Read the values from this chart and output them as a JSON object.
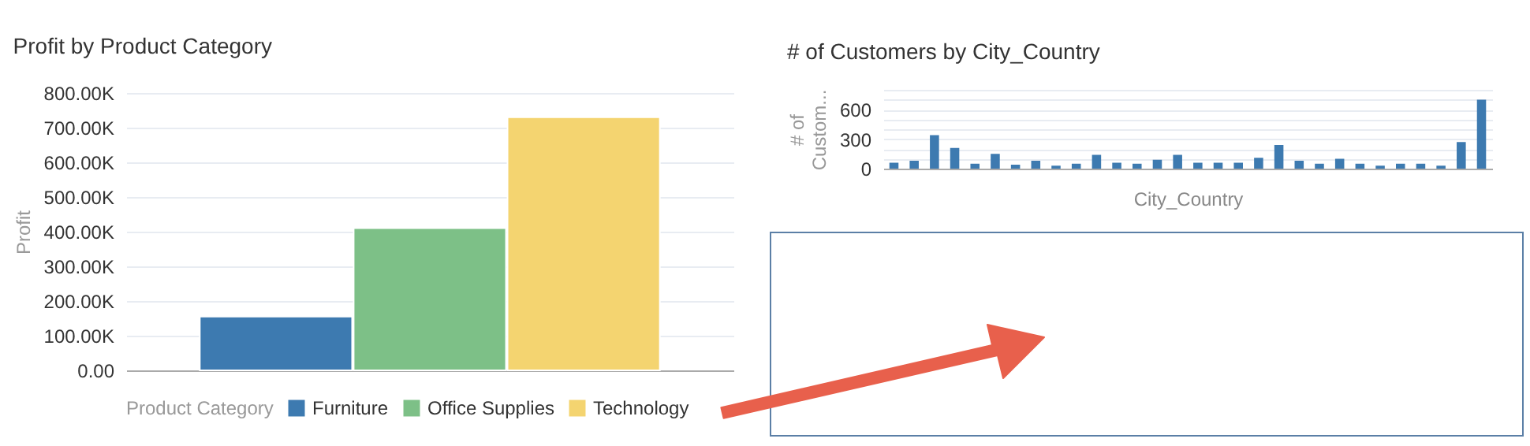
{
  "chart_data": [
    {
      "type": "bar",
      "title": "Profit by Product Category",
      "ylabel": "Profit",
      "legend_title": "Product Category",
      "categories": [
        null
      ],
      "series": [
        {
          "name": "Furniture",
          "color": "#3d7ab0",
          "values": [
            155000
          ]
        },
        {
          "name": "Office Supplies",
          "color": "#7dc087",
          "values": [
            410000
          ]
        },
        {
          "name": "Technology",
          "color": "#f4d470",
          "values": [
            730000
          ]
        }
      ],
      "ylim": [
        0,
        800000
      ],
      "yticks": [
        {
          "value": 0,
          "label": "0.00"
        },
        {
          "value": 100000,
          "label": "100.00K"
        },
        {
          "value": 200000,
          "label": "200.00K"
        },
        {
          "value": 300000,
          "label": "300.00K"
        },
        {
          "value": 400000,
          "label": "400.00K"
        },
        {
          "value": 500000,
          "label": "500.00K"
        },
        {
          "value": 600000,
          "label": "600.00K"
        },
        {
          "value": 700000,
          "label": "700.00K"
        },
        {
          "value": 800000,
          "label": "800.00K"
        }
      ],
      "grid": "y",
      "legend": "bottom",
      "tick_labels": "y"
    },
    {
      "type": "bar",
      "title": "# of Customers by City_Country",
      "xlabel": "City_Country",
      "ylabel": "# of Custom...",
      "categories": [
        null,
        null,
        null,
        null,
        null,
        null,
        null,
        null,
        null,
        null,
        null,
        null,
        null,
        null,
        null,
        null,
        null,
        null,
        null,
        null,
        null,
        null,
        null,
        null,
        null,
        null,
        null,
        null,
        null,
        null
      ],
      "values": [
        60,
        80,
        340,
        210,
        50,
        150,
        40,
        80,
        30,
        50,
        140,
        60,
        50,
        90,
        140,
        60,
        60,
        60,
        110,
        240,
        80,
        50,
        100,
        50,
        30,
        50,
        50,
        30,
        270,
        700
      ],
      "color": "#3d7ab0",
      "ylim": [
        0,
        800
      ],
      "yticks": [
        0,
        {
          "value": 100,
          "label": null
        },
        {
          "value": 200,
          "label": null
        },
        300,
        {
          "value": 400,
          "label": null
        },
        {
          "value": 500,
          "label": null
        },
        600,
        {
          "value": 700,
          "label": null
        },
        {
          "value": 800,
          "label": null
        }
      ],
      "grid": "y",
      "tick_labels": "y"
    }
  ]
}
